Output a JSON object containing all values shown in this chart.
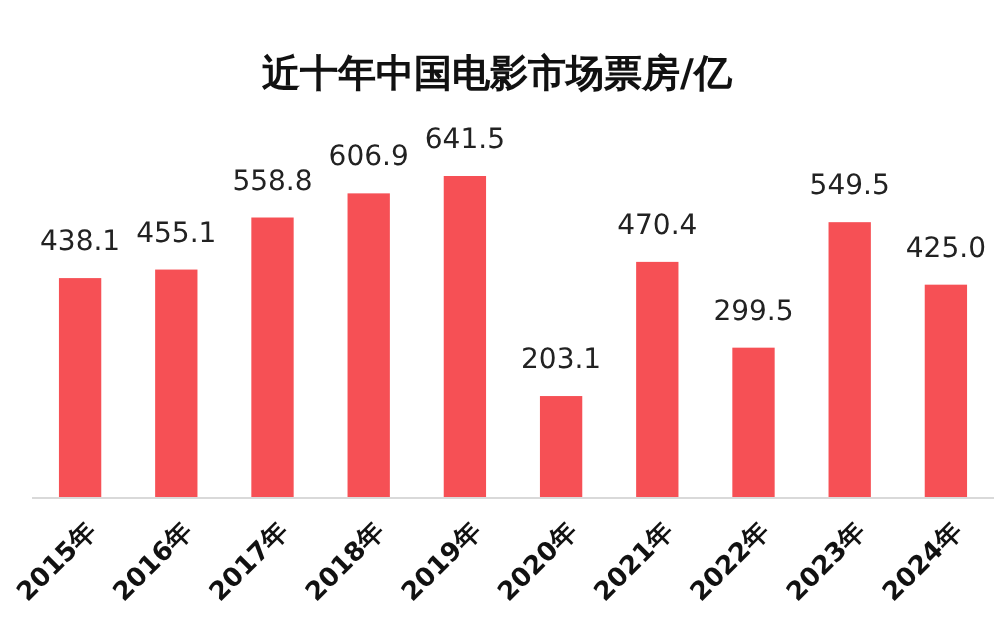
{
  "chart_data": {
    "type": "bar",
    "title": "近十年中国电影市场票房/亿",
    "categories": [
      "2015年",
      "2016年",
      "2017年",
      "2018年",
      "2019年",
      "2020年",
      "2021年",
      "2022年",
      "2023年",
      "2024年"
    ],
    "values": [
      438.1,
      455.1,
      558.8,
      606.9,
      641.5,
      203.1,
      470.4,
      299.5,
      549.5,
      425.0
    ],
    "value_labels": [
      "438.1",
      "455.1",
      "558.8",
      "606.9",
      "641.5",
      "203.1",
      "470.4",
      "299.5",
      "549.5",
      "425.0"
    ],
    "color": "#f65055"
  }
}
